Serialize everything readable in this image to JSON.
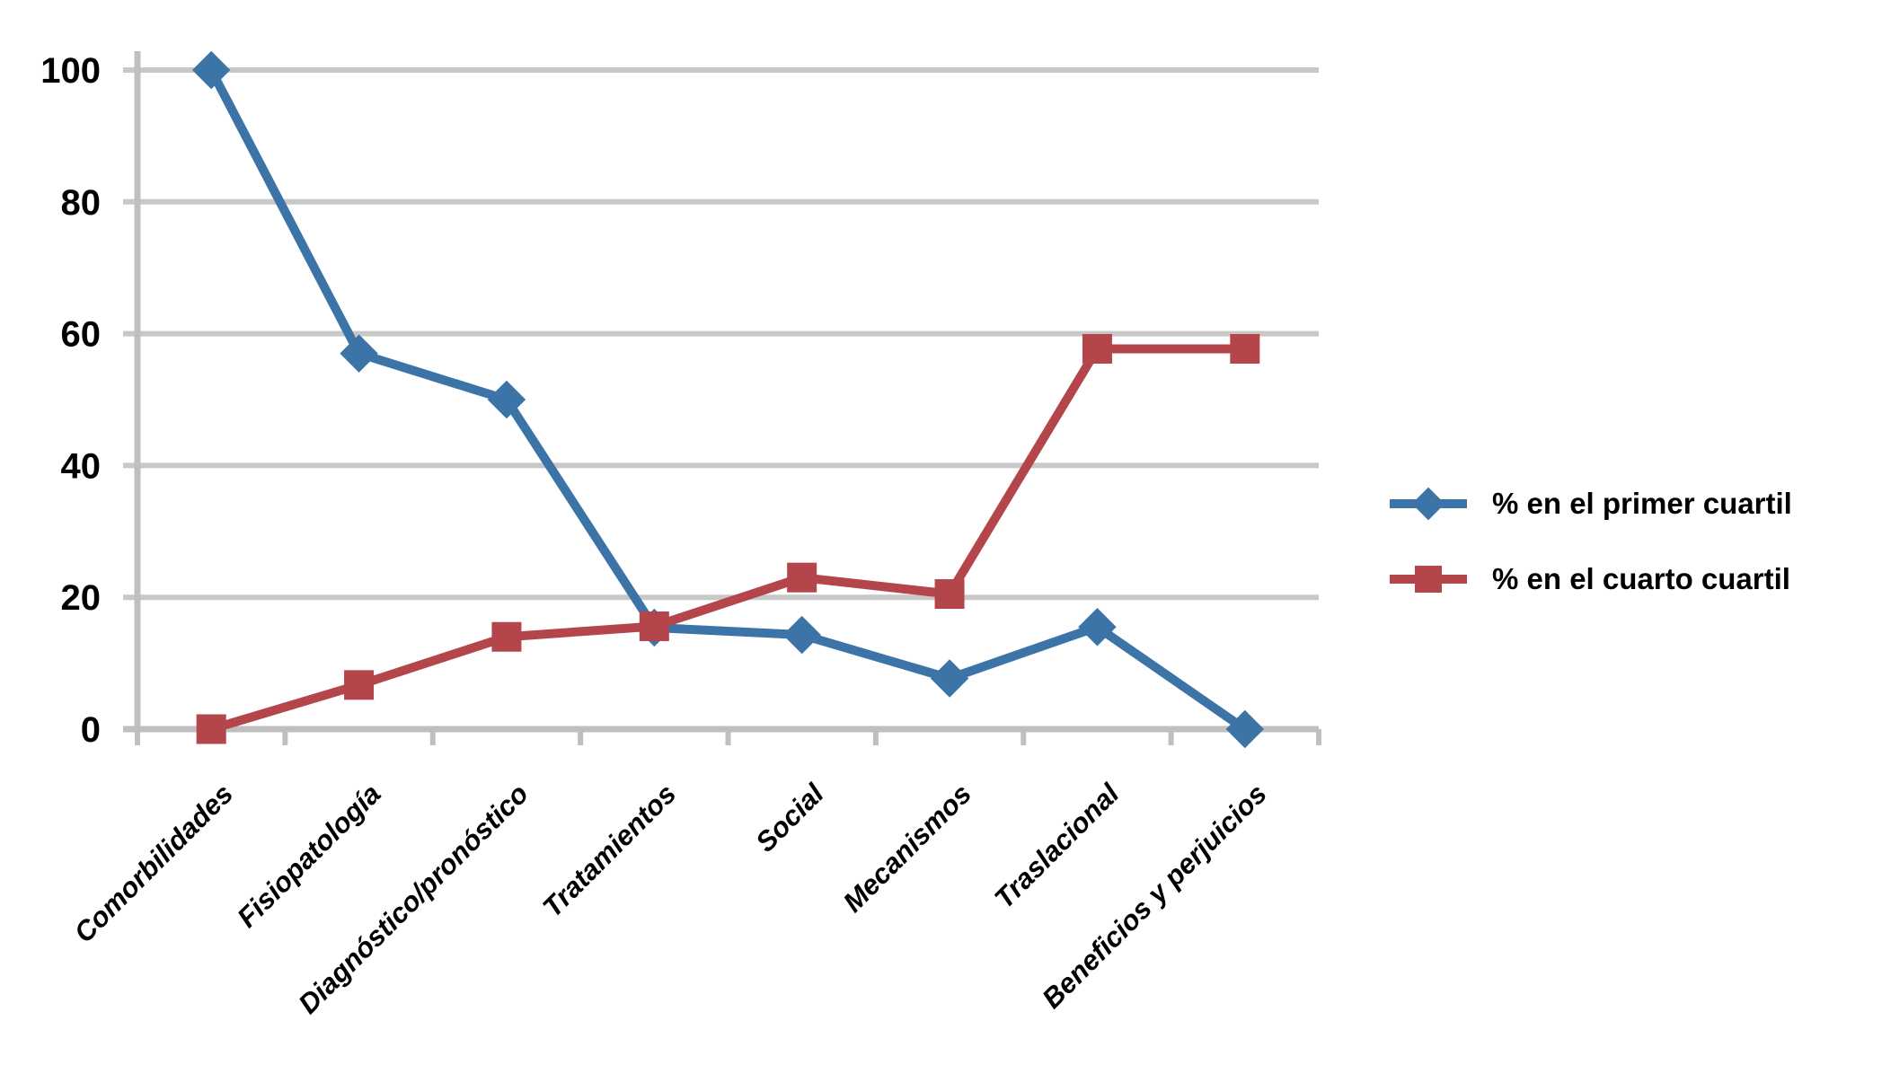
{
  "chart_data": {
    "type": "line",
    "title": "",
    "xlabel": "",
    "ylabel": "",
    "categories": [
      "Comorbilidades",
      "Fisiopatología",
      "Diagnóstico/pronóstico",
      "Tratamientos",
      "Social",
      "Mecanismos",
      "Traslacional",
      "Beneficios y perjuicios"
    ],
    "series": [
      {
        "name": "% en el primer cuartil",
        "marker": "diamond",
        "color": "#3C74A8",
        "values": [
          100,
          57,
          50,
          15.4,
          14.3,
          7.7,
          15.5,
          0
        ]
      },
      {
        "name": "% en el cuarto cuartil",
        "marker": "square",
        "color": "#B4454B",
        "values": [
          0,
          6.7,
          14,
          15.6,
          23,
          20.5,
          57.7,
          57.7
        ]
      }
    ],
    "ylim": [
      0,
      100
    ],
    "ytick_labels": [
      0,
      20,
      40,
      60,
      80,
      100
    ],
    "grid": "horizontal",
    "gridline_color": "#C8C8C8",
    "axis_color": "#BFBFBF",
    "background": "#FFFFFF",
    "text_color": "#000000",
    "legend_position": "right",
    "x_label_rotation_deg": -45
  }
}
